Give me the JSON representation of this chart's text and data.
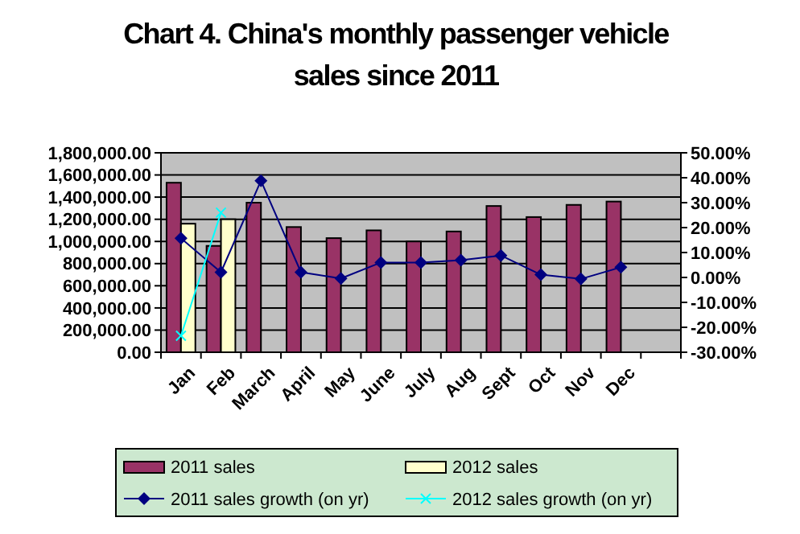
{
  "chart_data": {
    "type": "bar",
    "title": "Chart 4. China's monthly passenger vehicle sales since 2011",
    "categories": [
      "Jan",
      "Feb",
      "March",
      "April",
      "May",
      "June",
      "July",
      "Aug",
      "Sept",
      "Oct",
      "Nov",
      "Dec",
      null
    ],
    "series": [
      {
        "name": "2011 sales",
        "color": "#993366",
        "values": [
          1530000,
          960000,
          1350000,
          1130000,
          1030000,
          1100000,
          1000000,
          1090000,
          1320000,
          1220000,
          1330000,
          1360000,
          null
        ]
      },
      {
        "name": "2012 sales",
        "color": "#ffffcc",
        "values": [
          1160000,
          1200000,
          null,
          null,
          null,
          null,
          null,
          null,
          null,
          null,
          null,
          null,
          null
        ]
      },
      {
        "name": "2011 sales growth (on yr)",
        "type": "line",
        "axis": "y2",
        "color": "#000080",
        "marker": "diamond",
        "values": [
          15.7,
          2.1,
          38.8,
          2.1,
          -0.4,
          6.0,
          6.0,
          6.9,
          8.8,
          1.1,
          -0.6,
          4.1,
          null
        ]
      },
      {
        "name": "2012 sales growth (on yr)",
        "type": "line",
        "axis": "y2",
        "color": "#00ffff",
        "marker": "cross",
        "values": [
          -23.4,
          26.0,
          null,
          null,
          null,
          null,
          null,
          null,
          null,
          null,
          null,
          null,
          null
        ]
      }
    ],
    "ylim": [
      0,
      1800000
    ],
    "yticks": [
      {
        "value": 0,
        "label": "0.00"
      },
      {
        "value": 200000,
        "label": "200,000.00"
      },
      {
        "value": 400000,
        "label": "400,000.00"
      },
      {
        "value": 600000,
        "label": "600,000.00"
      },
      {
        "value": 800000,
        "label": "800,000.00"
      },
      {
        "value": 1000000,
        "label": "1,000,000.00"
      },
      {
        "value": 1200000,
        "label": "1,200,000.00"
      },
      {
        "value": 1400000,
        "label": "1,400,000.00"
      },
      {
        "value": 1600000,
        "label": "1,600,000.00"
      },
      {
        "value": 1800000,
        "label": "1,800,000.00"
      }
    ],
    "y2lim": [
      -30,
      50
    ],
    "y2ticks": [
      {
        "value": -30,
        "label": "-30.00%"
      },
      {
        "value": -20,
        "label": "-20.00%"
      },
      {
        "value": -10,
        "label": "-10.00%"
      },
      {
        "value": 0,
        "label": "0.00%"
      },
      {
        "value": 10,
        "label": "10.00%"
      },
      {
        "value": 20,
        "label": "20.00%"
      },
      {
        "value": 30,
        "label": "30.00%"
      },
      {
        "value": 40,
        "label": "40.00%"
      },
      {
        "value": 50,
        "label": "50.00%"
      }
    ],
    "grid": "y",
    "legend": "bottom"
  }
}
